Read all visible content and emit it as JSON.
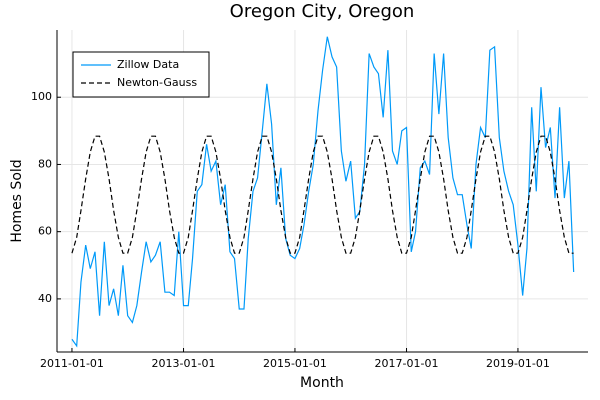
{
  "chart_data": {
    "type": "line",
    "title": "Oregon City, Oregon",
    "xlabel": "Month",
    "ylabel": "Homes Sold",
    "x": [
      "2011-01-01",
      "2011-02-01",
      "2011-03-01",
      "2011-04-01",
      "2011-05-01",
      "2011-06-01",
      "2011-07-01",
      "2011-08-01",
      "2011-09-01",
      "2011-10-01",
      "2011-11-01",
      "2011-12-01",
      "2012-01-01",
      "2012-02-01",
      "2012-03-01",
      "2012-04-01",
      "2012-05-01",
      "2012-06-01",
      "2012-07-01",
      "2012-08-01",
      "2012-09-01",
      "2012-10-01",
      "2012-11-01",
      "2012-12-01",
      "2013-01-01",
      "2013-02-01",
      "2013-03-01",
      "2013-04-01",
      "2013-05-01",
      "2013-06-01",
      "2013-07-01",
      "2013-08-01",
      "2013-09-01",
      "2013-10-01",
      "2013-11-01",
      "2013-12-01",
      "2014-01-01",
      "2014-02-01",
      "2014-03-01",
      "2014-04-01",
      "2014-05-01",
      "2014-06-01",
      "2014-07-01",
      "2014-08-01",
      "2014-09-01",
      "2014-10-01",
      "2014-11-01",
      "2014-12-01",
      "2015-01-01",
      "2015-02-01",
      "2015-03-01",
      "2015-04-01",
      "2015-05-01",
      "2015-06-01",
      "2015-07-01",
      "2015-08-01",
      "2015-09-01",
      "2015-10-01",
      "2015-11-01",
      "2015-12-01",
      "2016-01-01",
      "2016-02-01",
      "2016-03-01",
      "2016-04-01",
      "2016-05-01",
      "2016-06-01",
      "2016-07-01",
      "2016-08-01",
      "2016-09-01",
      "2016-10-01",
      "2016-11-01",
      "2016-12-01",
      "2017-01-01",
      "2017-02-01",
      "2017-03-01",
      "2017-04-01",
      "2017-05-01",
      "2017-06-01",
      "2017-07-01",
      "2017-08-01",
      "2017-09-01",
      "2017-10-01",
      "2017-11-01",
      "2017-12-01",
      "2018-01-01",
      "2018-02-01",
      "2018-03-01",
      "2018-04-01",
      "2018-05-01",
      "2018-06-01",
      "2018-07-01",
      "2018-08-01",
      "2018-09-01",
      "2018-10-01",
      "2018-11-01",
      "2018-12-01",
      "2019-01-01",
      "2019-02-01",
      "2019-03-01",
      "2019-04-01",
      "2019-05-01",
      "2019-06-01",
      "2019-07-01",
      "2019-08-01",
      "2019-09-01",
      "2019-10-01",
      "2019-11-01",
      "2019-12-01",
      "2020-01-01"
    ],
    "series": [
      {
        "name": "Zillow Data",
        "color": "#009af9",
        "dash": false,
        "values": [
          28,
          26,
          45,
          56,
          49,
          54,
          35,
          57,
          38,
          43,
          35,
          50,
          35,
          33,
          38,
          48,
          57,
          51,
          53,
          57,
          42,
          42,
          41,
          60,
          38,
          38,
          52,
          72,
          74,
          86,
          78,
          81,
          68,
          74,
          54,
          52,
          37,
          37,
          58,
          72,
          76,
          90,
          104,
          92,
          68,
          79,
          58,
          53,
          52,
          55,
          62,
          72,
          80,
          96,
          108,
          118,
          112,
          109,
          84,
          75,
          81,
          64,
          66,
          80,
          113,
          109,
          107,
          94,
          114,
          84,
          80,
          90,
          91,
          54,
          60,
          79,
          81,
          77,
          113,
          95,
          113,
          88,
          76,
          71,
          71,
          62,
          55,
          80,
          91,
          88,
          114,
          115,
          88,
          78,
          72,
          68,
          56,
          41,
          55,
          97,
          72,
          103,
          85,
          91,
          70,
          97,
          70,
          81,
          48
        ]
      },
      {
        "name": "Newton-Gauss",
        "color": "#000000",
        "dash": true,
        "values": [
          53.6,
          58.3,
          66.3,
          75.7,
          83.7,
          88.4,
          88.4,
          83.7,
          75.7,
          66.3,
          58.3,
          53.6,
          53.6,
          58.3,
          66.3,
          75.7,
          83.7,
          88.4,
          88.4,
          83.7,
          75.7,
          66.3,
          58.3,
          53.6,
          53.6,
          58.3,
          66.3,
          75.7,
          83.7,
          88.4,
          88.4,
          83.7,
          75.7,
          66.3,
          58.3,
          53.6,
          53.6,
          58.3,
          66.3,
          75.7,
          83.7,
          88.4,
          88.4,
          83.7,
          75.7,
          66.3,
          58.3,
          53.6,
          53.6,
          58.3,
          66.3,
          75.7,
          83.7,
          88.4,
          88.4,
          83.7,
          75.7,
          66.3,
          58.3,
          53.6,
          53.6,
          58.3,
          66.3,
          75.7,
          83.7,
          88.4,
          88.4,
          83.7,
          75.7,
          66.3,
          58.3,
          53.6,
          53.6,
          58.3,
          66.3,
          75.7,
          83.7,
          88.4,
          88.4,
          83.7,
          75.7,
          66.3,
          58.3,
          53.6,
          53.6,
          58.3,
          66.3,
          75.7,
          83.7,
          88.4,
          88.4,
          83.7,
          75.7,
          66.3,
          58.3,
          53.6,
          53.6,
          58.3,
          66.3,
          75.7,
          83.7,
          88.4,
          88.4,
          83.7,
          75.7,
          66.3,
          58.3,
          53.6,
          53.6
        ]
      }
    ],
    "xlim": [
      "2010-09-25",
      "2020-04-04"
    ],
    "xticks": [
      "2011-01-01",
      "2013-01-01",
      "2015-01-01",
      "2017-01-01",
      "2019-01-01"
    ],
    "ylim": [
      24.2,
      120
    ],
    "yticks": [
      40,
      60,
      80,
      100
    ],
    "grid": true,
    "legend": "top-left"
  }
}
